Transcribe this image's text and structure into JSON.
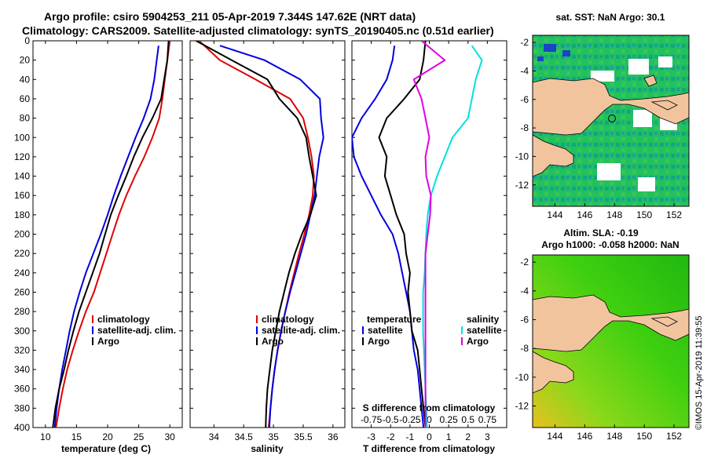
{
  "title_line1": "Argo profile: csiro 5904253_211 05-Apr-2019 7.344S 147.62E (NRT data)",
  "title_line2": "Climatology: CARS2009. Satellite-adjusted climatology: synTS_20190405.nc (0.51d earlier)",
  "colors": {
    "climatology": "#e00000",
    "satellite": "#0000e0",
    "argo": "#000000",
    "sal_sat": "#00e0e0",
    "sal_argo": "#e000e0",
    "land": "#f2c49e",
    "sea_green": "#22c060"
  },
  "chart_data": [
    {
      "type": "line",
      "title": "",
      "xlabel": "temperature (deg C)",
      "ylabel": "",
      "xlim": [
        8,
        32
      ],
      "ylim": [
        400,
        0
      ],
      "xticks": [
        "10",
        "15",
        "20",
        "25",
        "30"
      ],
      "yticks": [
        "0",
        "20",
        "40",
        "60",
        "80",
        "100",
        "120",
        "140",
        "160",
        "180",
        "200",
        "220",
        "240",
        "260",
        "280",
        "300",
        "320",
        "340",
        "360",
        "380",
        "400"
      ],
      "legend": [
        "climatology",
        "satellite-adj. clim.",
        "Argo"
      ],
      "series": [
        {
          "name": "climatology",
          "x": [
            30,
            29.6,
            29.2,
            28.8,
            28.3,
            27.2,
            25.9,
            24.4,
            23.0,
            21.8,
            20.8,
            19.8,
            18.8,
            17.8,
            16.5,
            15.4,
            14.4,
            13.5,
            12.8,
            12.2,
            11.7
          ],
          "y": [
            0,
            20,
            40,
            60,
            80,
            100,
            120,
            140,
            160,
            180,
            200,
            220,
            240,
            260,
            280,
            300,
            320,
            340,
            360,
            380,
            400
          ]
        },
        {
          "name": "satellite-adj. clim.",
          "x": [
            28.2,
            27.9,
            27.5,
            26.9,
            25.8,
            24.5,
            23.3,
            22.1,
            21.0,
            20.0,
            18.9,
            17.7,
            16.5,
            15.5,
            14.6,
            13.9,
            13.3,
            12.7,
            12.2,
            11.8,
            11.5
          ],
          "y": [
            5,
            20,
            40,
            60,
            80,
            100,
            120,
            140,
            160,
            180,
            200,
            220,
            240,
            260,
            280,
            300,
            320,
            340,
            360,
            380,
            400
          ]
        },
        {
          "name": "Argo",
          "x": [
            29.8,
            29.6,
            29.1,
            28.6,
            27.2,
            25.6,
            24.2,
            23.0,
            21.7,
            20.5,
            19.6,
            18.7,
            17.6,
            16.5,
            15.4,
            14.5,
            13.7,
            13.0,
            12.2,
            11.6,
            11.2
          ],
          "y": [
            0,
            20,
            40,
            60,
            80,
            100,
            120,
            140,
            160,
            180,
            200,
            220,
            240,
            260,
            280,
            300,
            320,
            340,
            360,
            380,
            400
          ]
        }
      ]
    },
    {
      "type": "line",
      "title": "",
      "xlabel": "salinity",
      "ylabel": "",
      "xlim": [
        33.6,
        36.2
      ],
      "ylim": [
        400,
        0
      ],
      "xticks": [
        "34",
        "34.5",
        "35",
        "35.5",
        "36"
      ],
      "legend": [
        "climatology",
        "satellite-adj. clim.",
        "Argo"
      ],
      "series": [
        {
          "name": "climatology",
          "x": [
            33.75,
            34.1,
            34.7,
            35.28,
            35.5,
            35.58,
            35.64,
            35.68,
            35.66,
            35.6,
            35.52,
            35.43,
            35.35,
            35.27,
            35.2,
            35.13,
            35.07,
            35.02,
            34.98,
            34.95,
            34.92
          ],
          "y": [
            0,
            20,
            40,
            60,
            80,
            100,
            120,
            140,
            160,
            180,
            200,
            220,
            240,
            260,
            280,
            300,
            320,
            340,
            360,
            380,
            400
          ]
        },
        {
          "name": "satellite-adj. clim.",
          "x": [
            34.1,
            34.85,
            35.45,
            35.78,
            35.8,
            35.84,
            35.77,
            35.73,
            35.69,
            35.62,
            35.55,
            35.46,
            35.37,
            35.28,
            35.2,
            35.13,
            35.07,
            35.02,
            34.98,
            34.95,
            34.93
          ],
          "y": [
            5,
            20,
            40,
            60,
            80,
            100,
            120,
            140,
            160,
            180,
            200,
            220,
            240,
            260,
            280,
            300,
            320,
            340,
            360,
            380,
            400
          ]
        },
        {
          "name": "Argo",
          "x": [
            33.7,
            34.3,
            34.9,
            35.1,
            35.4,
            35.55,
            35.6,
            35.66,
            35.72,
            35.62,
            35.48,
            35.36,
            35.26,
            35.18,
            35.1,
            35.04,
            34.98,
            34.94,
            34.9,
            34.88,
            34.87
          ],
          "y": [
            0,
            20,
            40,
            60,
            80,
            100,
            120,
            140,
            160,
            180,
            200,
            220,
            240,
            260,
            280,
            300,
            320,
            340,
            360,
            380,
            400
          ]
        }
      ]
    },
    {
      "type": "line",
      "title": "",
      "xlabel": "T difference from climatology",
      "x2label": "S difference from climatology",
      "xlim": [
        -4,
        4
      ],
      "x2lim": [
        -1,
        1
      ],
      "ylim": [
        400,
        0
      ],
      "xticks": [
        "-3",
        "-2",
        "-1",
        "0",
        "1",
        "2",
        "3"
      ],
      "x2ticks": [
        "-0.75",
        "-0.5",
        "-0.25",
        "0",
        "0.25",
        "0.5",
        "0.75"
      ],
      "legend_temperature": "temperature",
      "legend_salinity": "salinity",
      "legend_entries": [
        "satellite",
        "Argo",
        "satellite",
        "Argo"
      ],
      "series": [
        {
          "name": "temperature satellite",
          "x": [
            -1.8,
            -1.9,
            -2.2,
            -2.8,
            -3.5,
            -4.0,
            -3.9,
            -3.5,
            -3.0,
            -2.5,
            -1.9,
            -1.6,
            -1.4,
            -1.2,
            -1.0,
            -0.9,
            -0.8,
            -0.6,
            -0.5,
            -0.4,
            -0.3
          ],
          "y": [
            5,
            20,
            40,
            60,
            80,
            100,
            120,
            140,
            160,
            180,
            200,
            220,
            240,
            260,
            280,
            300,
            320,
            340,
            360,
            380,
            400
          ]
        },
        {
          "name": "temperature Argo",
          "x": [
            -0.2,
            -0.3,
            -0.5,
            -1.3,
            -2.2,
            -2.6,
            -2.2,
            -2.3,
            -2.0,
            -1.7,
            -1.3,
            -1.2,
            -1.0,
            -1.1,
            -1.0,
            -0.9,
            -0.6,
            -0.5,
            -0.4,
            -0.3,
            -0.2
          ],
          "y": [
            0,
            20,
            40,
            60,
            80,
            100,
            120,
            140,
            160,
            180,
            200,
            220,
            240,
            260,
            280,
            300,
            320,
            340,
            360,
            380,
            400
          ]
        },
        {
          "name": "salinity satellite",
          "x": [
            0.55,
            0.68,
            0.6,
            0.55,
            0.5,
            0.3,
            0.2,
            0.1,
            0.02,
            -0.02,
            -0.04,
            -0.05,
            -0.06,
            -0.08,
            -0.08,
            -0.08,
            -0.07,
            -0.06,
            -0.05,
            -0.04,
            -0.03
          ],
          "y": [
            5,
            20,
            40,
            60,
            80,
            100,
            120,
            140,
            160,
            180,
            200,
            220,
            240,
            260,
            280,
            300,
            320,
            340,
            360,
            380,
            400
          ]
        },
        {
          "name": "salinity Argo",
          "x": [
            -0.1,
            0.2,
            -0.2,
            -0.1,
            -0.05,
            0.0,
            -0.05,
            -0.04,
            0.02,
            0.01,
            -0.02,
            -0.05,
            -0.05,
            -0.05,
            -0.05,
            -0.05,
            -0.05,
            -0.05,
            -0.05,
            -0.05,
            -0.05
          ],
          "y": [
            0,
            20,
            40,
            60,
            80,
            100,
            120,
            140,
            160,
            180,
            200,
            220,
            240,
            260,
            280,
            300,
            320,
            340,
            360,
            380,
            400
          ]
        }
      ]
    },
    {
      "type": "heatmap",
      "title": "sat. SST: NaN Argo: 30.1",
      "xticks": [
        "144",
        "146",
        "148",
        "150",
        "152"
      ],
      "yticks": [
        "-2",
        "-4",
        "-6",
        "-8",
        "-10",
        "-12"
      ],
      "xlim": [
        142.5,
        153
      ],
      "ylim": [
        -13.5,
        -1.5
      ],
      "argo_position": [
        147.62,
        -7.344
      ]
    },
    {
      "type": "heatmap",
      "title_line1": "Altim. SLA: -0.19",
      "title_line2": "Argo h1000: -0.058 h2000: NaN",
      "xticks": [
        "144",
        "146",
        "148",
        "150",
        "152"
      ],
      "yticks": [
        "-2",
        "-4",
        "-6",
        "-8",
        "-10",
        "-12"
      ],
      "xlim": [
        142.5,
        153
      ],
      "ylim": [
        -13.5,
        -1.5
      ]
    }
  ],
  "stamp": "©IMOS 15-Apr-2019 11:39:55"
}
